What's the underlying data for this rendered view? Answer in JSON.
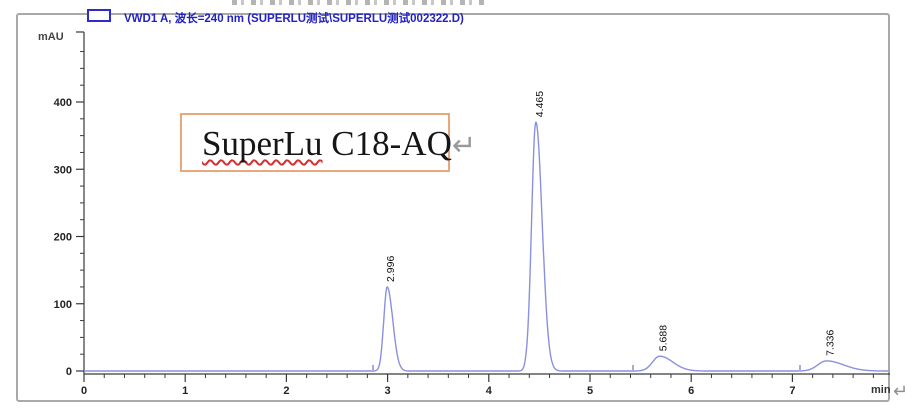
{
  "legend": {
    "label": "VWD1 A, 波长=240 nm (SUPERLU测试\\SUPERLU测试002322.D)"
  },
  "annotation": {
    "word": "SuperLu",
    "rest": " C18-AQ",
    "return_mark": "↵"
  },
  "axis_return_mark": "↵",
  "chart_data": {
    "type": "line",
    "title": "VWD1 A, 波长=240 nm (SUPERLU测试\\SUPERLU测试002322.D)",
    "xlabel": "min",
    "ylabel": "mAU",
    "xlim": [
      0,
      7.96
    ],
    "ylim": [
      0,
      505
    ],
    "x_ticks": [
      0,
      1,
      2,
      3,
      4,
      5,
      6,
      7
    ],
    "y_ticks": [
      0,
      100,
      200,
      300,
      400
    ],
    "x_minor_step": 0.2,
    "y_minor_step": 25,
    "grid": false,
    "legend_position": "top-left",
    "series": [
      {
        "name": "VWD1 A, 240 nm",
        "color": "#8a90e0",
        "peaks": [
          {
            "rt": 2.996,
            "label": "2.996",
            "height_mau": 125,
            "sigma_left_min": 0.034,
            "sigma_right_min": 0.055
          },
          {
            "rt": 4.465,
            "label": "4.465",
            "height_mau": 370,
            "sigma_left_min": 0.042,
            "sigma_right_min": 0.062
          },
          {
            "rt": 5.688,
            "label": "5.688",
            "height_mau": 22,
            "sigma_left_min": 0.07,
            "sigma_right_min": 0.13
          },
          {
            "rt": 7.336,
            "label": "7.336",
            "height_mau": 15,
            "sigma_left_min": 0.085,
            "sigma_right_min": 0.17
          }
        ]
      }
    ],
    "integration_marks_min": [
      2.856,
      5.425,
      7.075
    ]
  },
  "colors": {
    "trace": "#8a90e0",
    "legend_text": "#2222c4",
    "frame": "#a9a9a9",
    "annotation_border": "#e9a87c",
    "spellcheck_underline": "#d43030",
    "axis": "#3a3a3a"
  }
}
